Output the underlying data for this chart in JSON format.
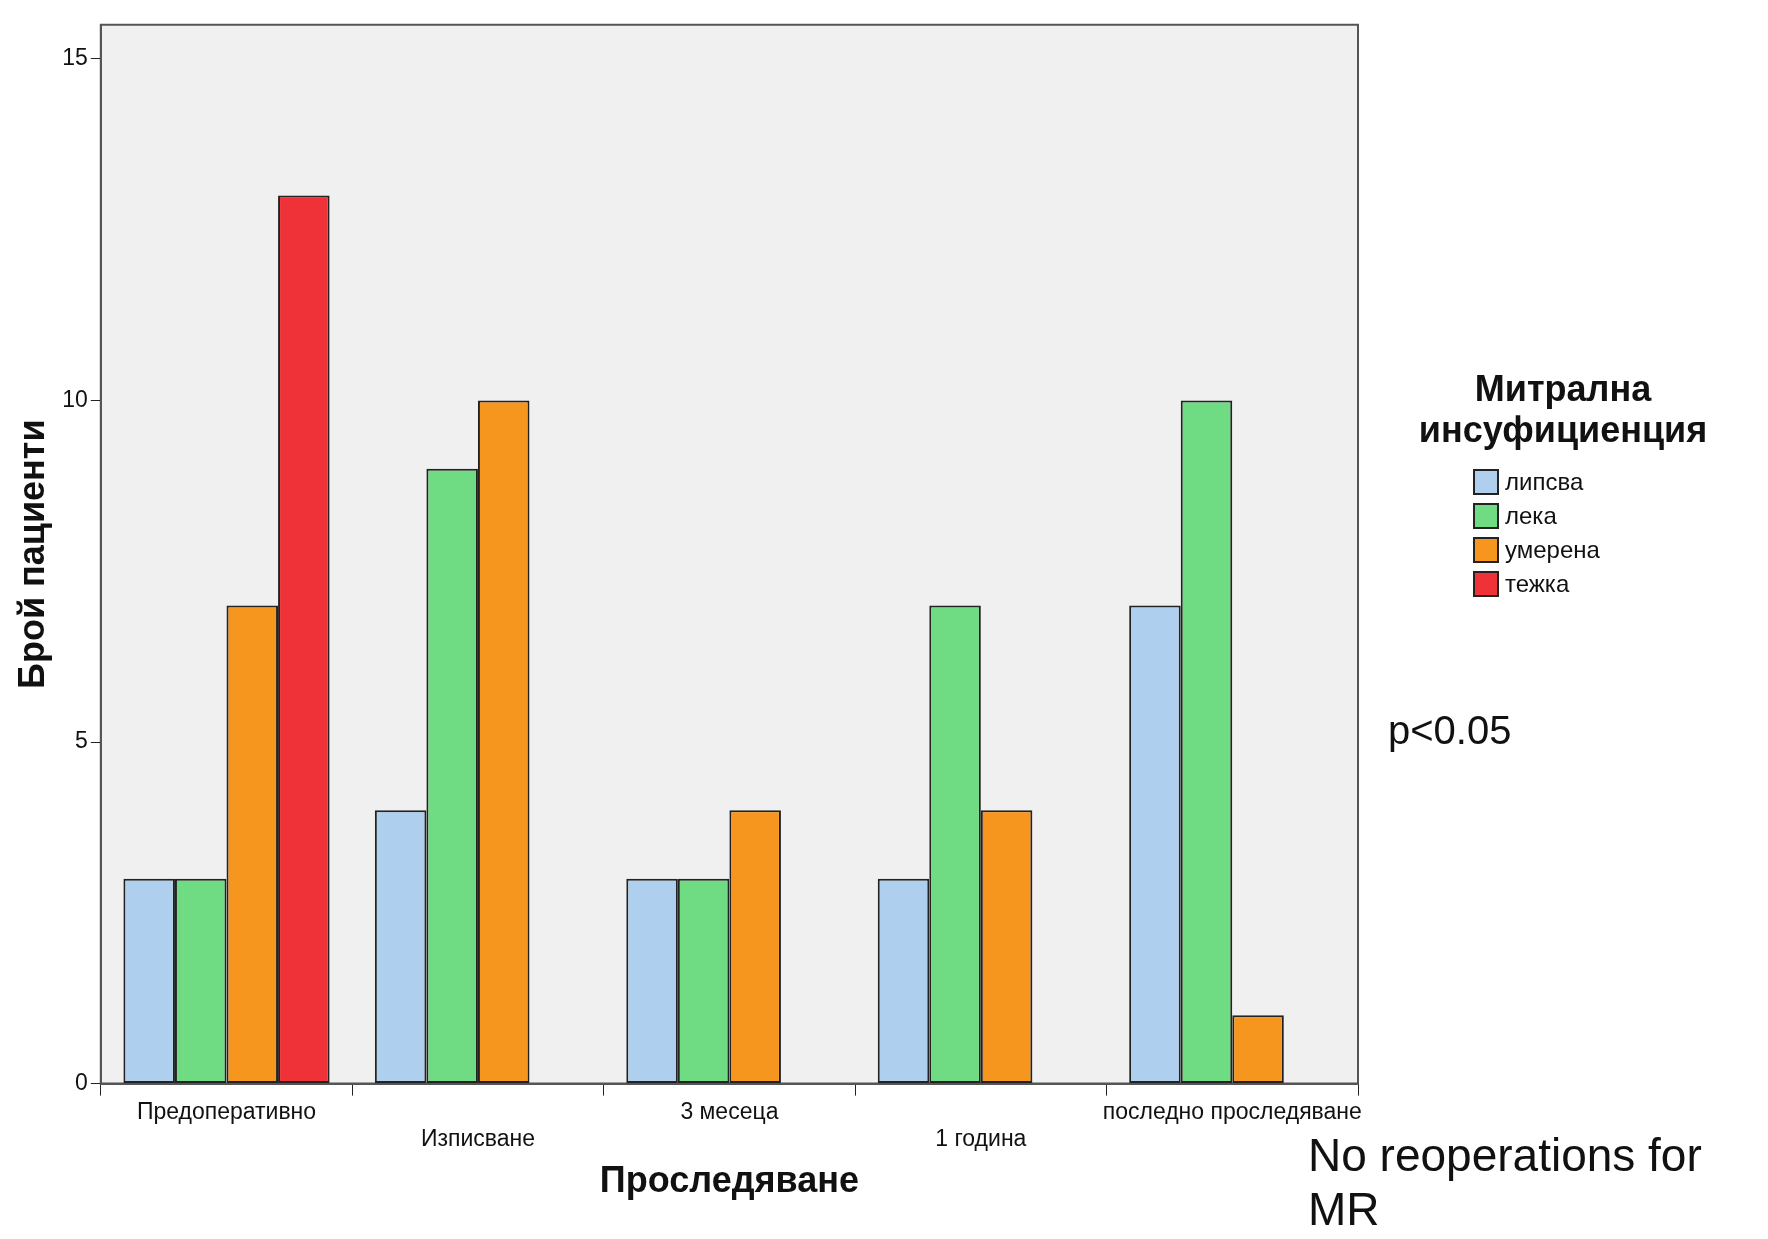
{
  "chart_data": {
    "type": "bar",
    "xlabel": "Проследяване",
    "ylabel": "Брой пациенти",
    "legend_title": "Митрална инсуфициенция",
    "categories": [
      "Предоперативно",
      "Изписване",
      "3 месеца",
      "1 година",
      "последно проследяване"
    ],
    "series": [
      {
        "name": "липсва",
        "color": "#aecfed",
        "values": [
          3,
          4,
          3,
          3,
          7
        ]
      },
      {
        "name": "лека",
        "color": "#6fdb82",
        "values": [
          3,
          9,
          3,
          7,
          10
        ]
      },
      {
        "name": "умерена",
        "color": "#f7961e",
        "values": [
          7,
          10,
          4,
          4,
          1
        ]
      },
      {
        "name": "тежка",
        "color": "#ee3237",
        "values": [
          13,
          null,
          null,
          null,
          null
        ]
      }
    ],
    "ylim": [
      0,
      15.5
    ],
    "yticks": [
      0,
      5,
      10,
      15
    ],
    "legend": "right",
    "annotations": [
      "p<0.05",
      "No reoperations for MR"
    ]
  }
}
